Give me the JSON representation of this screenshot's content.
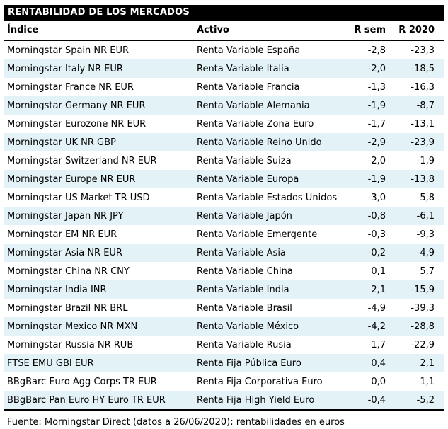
{
  "chart_data": {
    "type": "table",
    "title": "RENTABILIDAD DE LOS MERCADOS",
    "columns": [
      "Índice",
      "Activo",
      "R sem",
      "R 2020"
    ],
    "rows": [
      [
        "Morningstar Spain NR EUR",
        "Renta Variable España",
        "-2,8",
        "-23,3"
      ],
      [
        "Morningstar Italy NR EUR",
        "Renta Variable Italia",
        "-2,0",
        "-18,5"
      ],
      [
        "Morningstar France NR EUR",
        "Renta Variable Francia",
        "-1,3",
        "-16,3"
      ],
      [
        "Morningstar Germany NR EUR",
        "Renta Variable Alemania",
        "-1,9",
        "-8,7"
      ],
      [
        "Morningstar Eurozone NR EUR",
        "Renta Variable Zona Euro",
        "-1,7",
        "-13,1"
      ],
      [
        "Morningstar UK NR GBP",
        "Renta Variable Reino Unido",
        "-2,9",
        "-23,9"
      ],
      [
        "Morningstar Switzerland NR EUR",
        "Renta Variable Suiza",
        "-2,0",
        "-1,9"
      ],
      [
        "Morningstar Europe NR EUR",
        "Renta Variable Europa",
        "-1,9",
        "-13,8"
      ],
      [
        "Morningstar US Market TR USD",
        "Renta Variable Estados Unidos",
        "-3,0",
        "-5,8"
      ],
      [
        "Morningstar Japan NR JPY",
        "Renta Variable Japón",
        "-0,8",
        "-6,1"
      ],
      [
        "Morningstar EM NR EUR",
        "Renta Variable Emergente",
        "-0,3",
        "-9,3"
      ],
      [
        "Morningstar Asia NR EUR",
        "Renta Variable Asia",
        "-0,2",
        "-4,9"
      ],
      [
        "Morningstar China NR CNY",
        "Renta Variable China",
        "0,1",
        "5,7"
      ],
      [
        "Morningstar India INR",
        "Renta Variable India",
        "2,1",
        "-15,9"
      ],
      [
        "Morningstar Brazil NR BRL",
        "Renta Variable Brasil",
        "-4,9",
        "-39,3"
      ],
      [
        "Morningstar Mexico NR MXN",
        "Renta Variable México",
        "-4,2",
        "-28,8"
      ],
      [
        "Morningstar Russia NR RUB",
        "Renta Variable Rusia",
        "-1,7",
        "-22,9"
      ],
      [
        "FTSE EMU GBI EUR",
        "Renta Fija Pública Euro",
        "0,4",
        "2,1"
      ],
      [
        "BBgBarc Euro Agg Corps TR EUR",
        "Renta Fija Corporativa Euro",
        "0,0",
        "-1,1"
      ],
      [
        "BBgBarc Pan Euro HY Euro TR EUR",
        "Renta Fija High Yield Euro",
        "-0,4",
        "-5,2"
      ]
    ],
    "layout": {
      "title_bar_bg": "#000000",
      "title_bar_text": "#ffffff",
      "row_alt_bg": "#e3f2f7",
      "rule_color": "#000000",
      "numeric_columns_right_aligned": true,
      "striping": "even rows shaded"
    }
  },
  "footer": {
    "source_note": "Fuente: Morningstar Direct (datos a 26/06/2020); rentabilidades en euros"
  }
}
